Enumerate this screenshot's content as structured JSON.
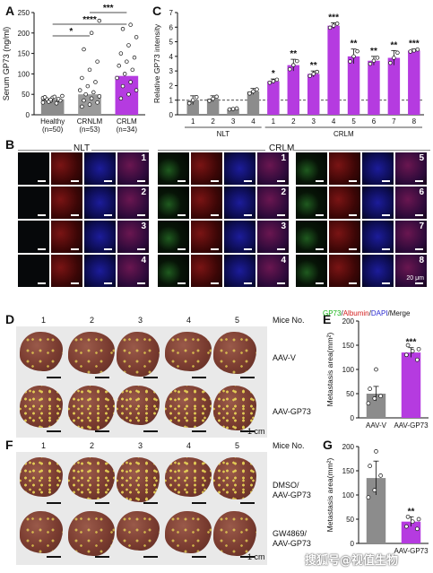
{
  "panel_letters": [
    "A",
    "B",
    "C",
    "D",
    "E",
    "F",
    "G"
  ],
  "chart_data": [
    {
      "id": "A",
      "type": "scatter",
      "ylabel": "Serum GP73 (ng/ml)",
      "ylim": [
        0,
        250
      ],
      "yticks": [
        0,
        50,
        100,
        150,
        200,
        250
      ],
      "categories": [
        "Healthy",
        "CRNLM",
        "CRLM"
      ],
      "sublabels": [
        "(n=50)",
        "(n=53)",
        "(n=34)"
      ],
      "bar_colors": [
        "#8c8c8c",
        "#9a9a9a",
        "#b53be0"
      ],
      "means": [
        38,
        50,
        95
      ],
      "points": [
        [
          30,
          34,
          36,
          40,
          42,
          35,
          38,
          44,
          46,
          32,
          28,
          41,
          37,
          39,
          43
        ],
        [
          20,
          25,
          30,
          35,
          40,
          45,
          50,
          55,
          60,
          70,
          80,
          90,
          110,
          130,
          160,
          200,
          230
        ],
        [
          40,
          50,
          60,
          70,
          80,
          90,
          100,
          110,
          120,
          130,
          140,
          150,
          170,
          190,
          210,
          220
        ]
      ],
      "significance": [
        {
          "from": 0,
          "to": 1,
          "label": "*"
        },
        {
          "from": 0,
          "to": 2,
          "label": "****"
        },
        {
          "from": 1,
          "to": 2,
          "label": "***"
        }
      ]
    },
    {
      "id": "C",
      "type": "bar",
      "ylabel": "Relative GP73 intensity",
      "ylim": [
        0,
        7
      ],
      "yticks": [
        0,
        1,
        2,
        3,
        4,
        5,
        6,
        7
      ],
      "categories": [
        "1",
        "2",
        "3",
        "4",
        "1",
        "2",
        "3",
        "4",
        "5",
        "6",
        "7",
        "8"
      ],
      "groups": [
        {
          "label": "NLT",
          "start": 0,
          "end": 3
        },
        {
          "label": "CRLM",
          "start": 4,
          "end": 11
        }
      ],
      "values": [
        1.0,
        1.1,
        0.4,
        1.6,
        2.3,
        3.4,
        2.8,
        6.1,
        4.0,
        3.7,
        3.9,
        4.4
      ],
      "errors": [
        0.3,
        0.2,
        0.05,
        0.2,
        0.15,
        0.4,
        0.2,
        0.2,
        0.5,
        0.3,
        0.5,
        0.1
      ],
      "colors": [
        "#8c8c8c",
        "#8c8c8c",
        "#8c8c8c",
        "#8c8c8c",
        "#b53be0",
        "#b53be0",
        "#b53be0",
        "#b53be0",
        "#b53be0",
        "#b53be0",
        "#b53be0",
        "#b53be0"
      ],
      "stars": [
        "",
        "",
        "",
        "",
        "*",
        "**",
        "**",
        "***",
        "**",
        "**",
        "**",
        "***"
      ],
      "reference_line": 1.0
    },
    {
      "id": "E",
      "type": "bar",
      "ylabel": "Metastasis area(mm²)",
      "ylim": [
        0,
        200
      ],
      "yticks": [
        0,
        50,
        100,
        150,
        200
      ],
      "categories": [
        "AAV-V",
        "AAV-GP73"
      ],
      "values": [
        50,
        135
      ],
      "errors": [
        15,
        10
      ],
      "colors": [
        "#8c8c8c",
        "#b53be0"
      ],
      "points": [
        [
          30,
          40,
          45,
          60,
          100
        ],
        [
          120,
          130,
          138,
          142,
          150
        ]
      ],
      "stars": [
        "",
        "***"
      ]
    },
    {
      "id": "G",
      "type": "bar",
      "ylabel": "Metastasis area(mm²)",
      "ylim": [
        0,
        200
      ],
      "yticks": [
        0,
        50,
        100,
        150,
        200
      ],
      "categories": [
        "",
        "AAV-GP73"
      ],
      "values": [
        135,
        45
      ],
      "errors": [
        35,
        10
      ],
      "colors": [
        "#8c8c8c",
        "#b53be0"
      ],
      "points": [
        [
          95,
          110,
          140,
          160,
          190
        ],
        [
          30,
          35,
          45,
          50,
          55
        ]
      ],
      "stars": [
        "",
        "**"
      ]
    }
  ],
  "micrographs": {
    "nlt_header": "NLT",
    "crlm_header": "CRLM",
    "nlt_numbers": [
      "1",
      "2",
      "3",
      "4"
    ],
    "crlm_left_numbers": [
      "1",
      "2",
      "3",
      "4"
    ],
    "crlm_right_numbers": [
      "5",
      "6",
      "7",
      "8"
    ],
    "scale_text": "20 μm",
    "legend": [
      {
        "text": "GP73",
        "color": "#16b316"
      },
      {
        "text": "/",
        "color": "#111111"
      },
      {
        "text": "Albumin",
        "color": "#d42020"
      },
      {
        "text": "/",
        "color": "#111111"
      },
      {
        "text": "DAPI",
        "color": "#2a2ad0"
      },
      {
        "text": "/Merge",
        "color": "#111111"
      }
    ]
  },
  "panel_D": {
    "mice_numbers": [
      "1",
      "2",
      "3",
      "4",
      "5"
    ],
    "mice_label": "Mice No.",
    "row_labels": [
      "AAV-V",
      "AAV-GP73"
    ],
    "scale_label": "1 cm"
  },
  "panel_F": {
    "mice_numbers": [
      "1",
      "2",
      "3",
      "4",
      "5"
    ],
    "mice_label": "Mice No.",
    "row_labels": [
      [
        "DMSO/",
        "AAV-GP73"
      ],
      [
        "GW4869/",
        "AAV-GP73"
      ]
    ],
    "scale_label": "1 cm"
  },
  "watermark": "搜狐号@视值生物"
}
